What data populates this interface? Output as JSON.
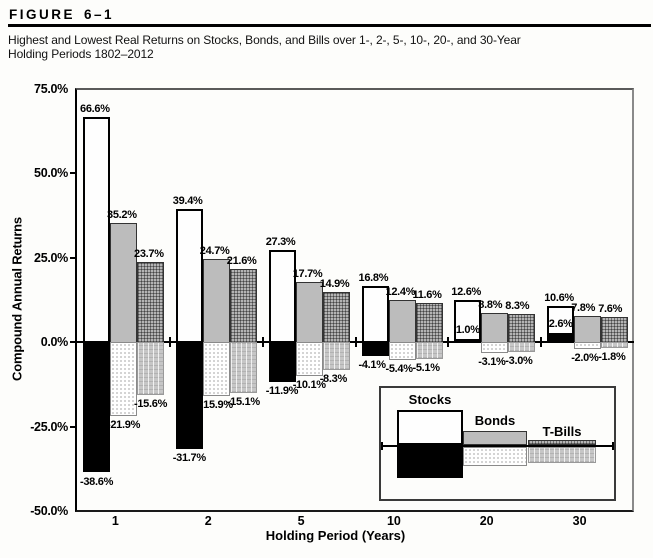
{
  "header": {
    "figure_word": "FIGURE",
    "figure_number": "6–1",
    "subtitle_line1": "Highest and Lowest Real Returns on Stocks, Bonds, and Bills over 1-, 2-, 5-, 10-, 20-, and 30-Year",
    "subtitle_line2": "Holding Periods 1802–2012"
  },
  "chart_data": {
    "type": "bar",
    "title": "Highest and Lowest Real Returns on Stocks, Bonds, and Bills over 1-, 2-, 5-, 10-, 20-, and 30-Year Holding Periods 1802–2012",
    "xlabel": "Holding Period (Years)",
    "ylabel": "Compound Annual Returns",
    "ylim": [
      -50,
      75
    ],
    "grid": false,
    "yticks": [
      {
        "value": 75,
        "label": "75.0%"
      },
      {
        "value": 50,
        "label": "50.0%"
      },
      {
        "value": 25,
        "label": "25.0%"
      },
      {
        "value": 0,
        "label": "0.0%"
      },
      {
        "value": -25,
        "label": "-25.0%"
      },
      {
        "value": -50,
        "label": "-50.0%"
      }
    ],
    "categories": [
      "1",
      "2",
      "5",
      "10",
      "20",
      "30"
    ],
    "series": [
      {
        "name": "Stocks",
        "high": [
          66.6,
          39.4,
          27.3,
          16.8,
          12.6,
          10.6
        ],
        "low": [
          -38.6,
          -31.7,
          -11.9,
          -4.1,
          1.0,
          2.6
        ]
      },
      {
        "name": "Bonds",
        "high": [
          35.2,
          24.7,
          17.7,
          12.4,
          8.8,
          7.8
        ],
        "low": [
          -21.9,
          -15.9,
          -10.1,
          -5.4,
          -3.1,
          -2.0
        ]
      },
      {
        "name": "T-Bills",
        "high": [
          23.7,
          21.6,
          14.9,
          11.6,
          8.3,
          7.6
        ],
        "low": [
          -15.6,
          -15.1,
          -8.3,
          -5.1,
          -3.0,
          -1.8
        ]
      }
    ],
    "legend": {
      "items": [
        "Stocks",
        "Bonds",
        "T-Bills"
      ],
      "position": "inside-bottom-right"
    },
    "colors": {
      "stocks_high": "#ffffff",
      "stocks_low": "#000000",
      "bonds_high": "#bcbcbc",
      "bonds_low": "#ffffff (light-gray dot pattern)",
      "tbills_high": "#b4b4b4 (dark crosshatch pattern)",
      "tbills_low": "#c6c6c6 (vertical line pattern)"
    }
  }
}
